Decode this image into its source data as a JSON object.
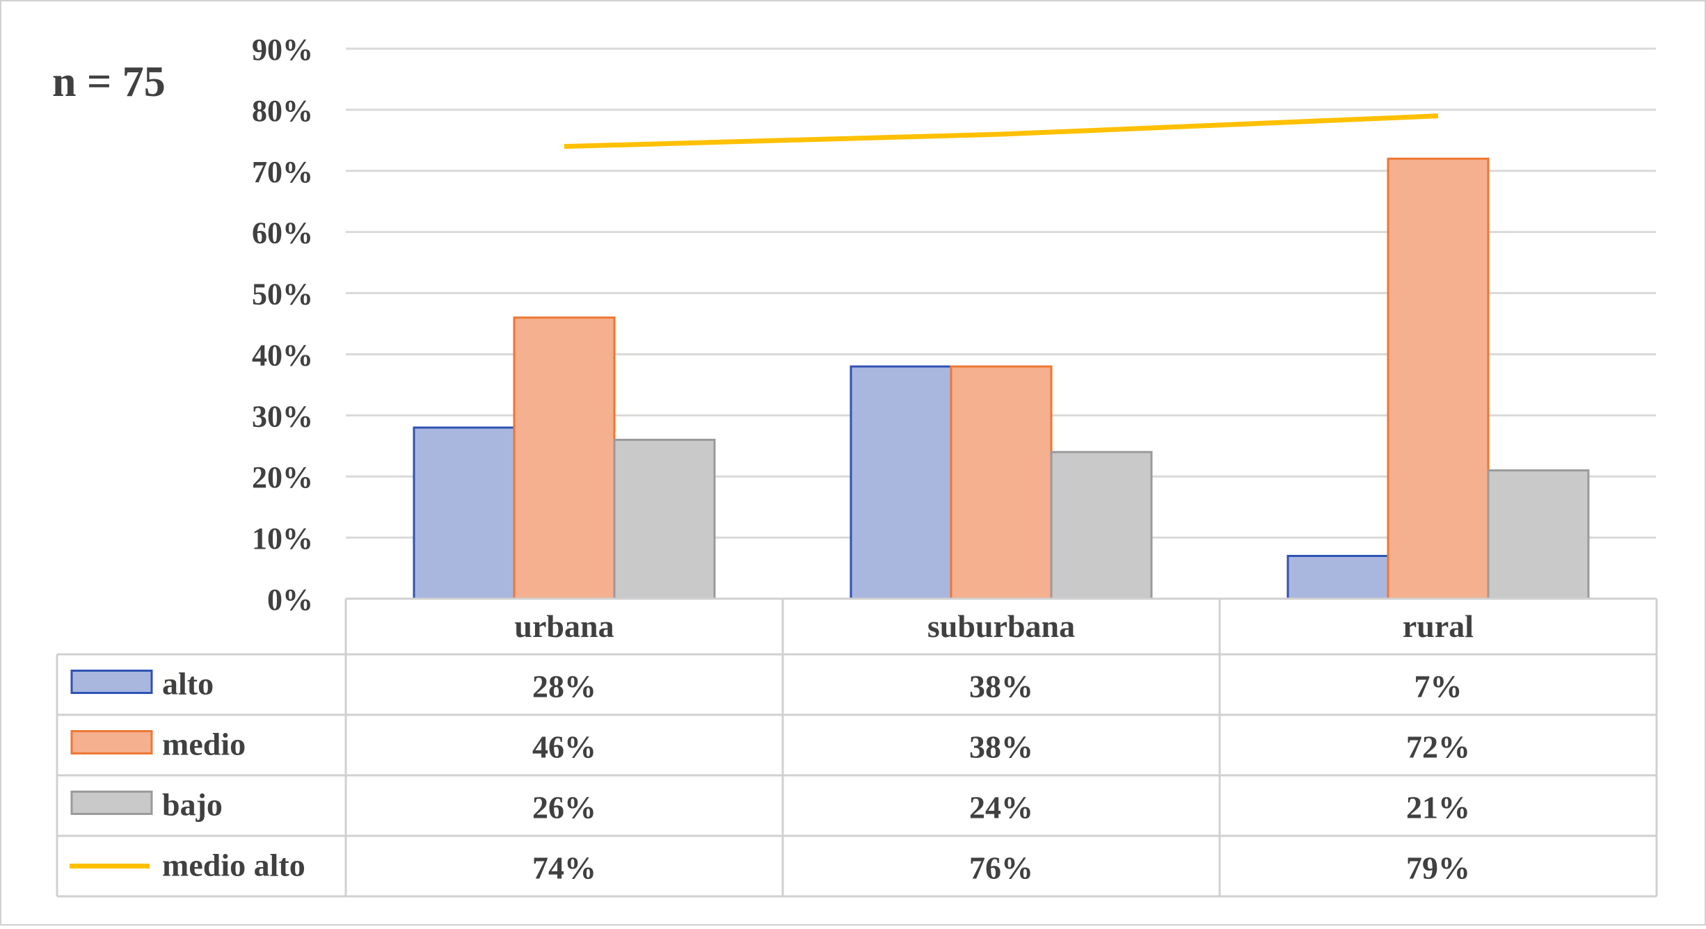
{
  "annotation": "n = 75",
  "chart_data": {
    "type": "bar",
    "categories": [
      "urbana",
      "suburbana",
      "rural"
    ],
    "series": [
      {
        "name": "alto",
        "type": "bar",
        "values": [
          28,
          38,
          7
        ],
        "labels": [
          "28%",
          "38%",
          "7%"
        ],
        "color": "#a9b7df",
        "stroke": "#2f52b3"
      },
      {
        "name": "medio",
        "type": "bar",
        "values": [
          46,
          38,
          72
        ],
        "labels": [
          "46%",
          "38%",
          "72%"
        ],
        "color": "#f5b08f",
        "stroke": "#ee7733"
      },
      {
        "name": "bajo",
        "type": "bar",
        "values": [
          26,
          24,
          21
        ],
        "labels": [
          "26%",
          "24%",
          "21%"
        ],
        "color": "#c9c9c9",
        "stroke": "#9a9a9a"
      },
      {
        "name": "medio alto",
        "type": "line",
        "values": [
          74,
          76,
          79
        ],
        "labels": [
          "74%",
          "76%",
          "79%"
        ],
        "color": "#ffc000"
      }
    ],
    "yticks": [
      "0%",
      "10%",
      "20%",
      "30%",
      "40%",
      "50%",
      "60%",
      "70%",
      "80%",
      "90%"
    ],
    "ylim": [
      0,
      90
    ],
    "grid": true,
    "legend": "data-table"
  }
}
